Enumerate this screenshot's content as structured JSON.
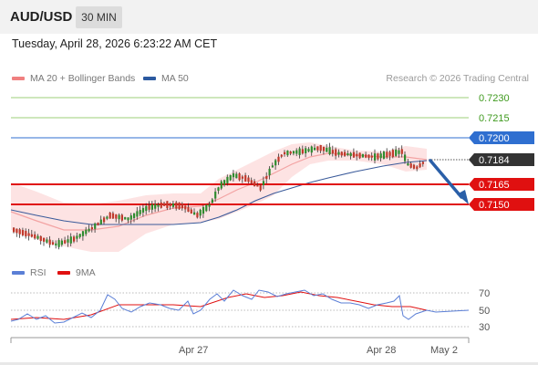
{
  "header": {
    "symbol": "AUD/USD",
    "timeframe": "30 MIN"
  },
  "datetime": "Tuesday, April 28, 2026 6:23:22 AM CET",
  "legend": {
    "ma_bb_label": "MA 20 + Bollinger Bands",
    "ma_bb_color": "#f08080",
    "ma50_label": "MA 50",
    "ma50_color": "#2c5aa0"
  },
  "credit": "Research © 2026 Trading Central",
  "levels": [
    {
      "label": "0.7230",
      "style": "green-line",
      "color": "#3f9a1e"
    },
    {
      "label": "0.7215",
      "style": "green-line",
      "color": "#3f9a1e"
    },
    {
      "label": "0.7200",
      "style": "blue-badge",
      "color": "#2f6fd0"
    },
    {
      "label": "0.7184",
      "style": "current-price",
      "color": "#333333"
    },
    {
      "label": "0.7165",
      "style": "red-badge",
      "color": "#e01010"
    },
    {
      "label": "0.7150",
      "style": "red-badge",
      "color": "#e01010"
    }
  ],
  "rsi_legend": {
    "rsi_label": "RSI",
    "rsi_color": "#5b7fd6",
    "ma_label": "9MA",
    "ma_color": "#e01010"
  },
  "rsi_scale": [
    "70",
    "50",
    "30"
  ],
  "x_axis": [
    "Apr 27",
    "Apr 28",
    "May 2"
  ],
  "colors": {
    "up_candle": "#2e8b2e",
    "down_candle": "#c0392b",
    "band_fill": "#fde3e3",
    "arrow": "#2a5fa8"
  }
}
